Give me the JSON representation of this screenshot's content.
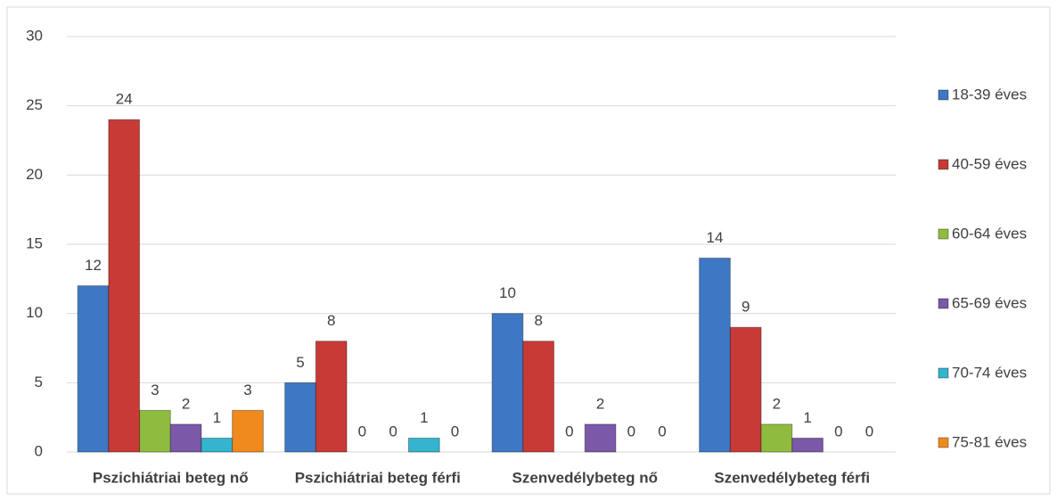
{
  "chart_data": {
    "type": "bar",
    "categories": [
      "Pszichiátriai beteg nő",
      "Pszichiátriai beteg férfi",
      "Szenvedélybeteg nő",
      "Szenvedélybeteg férfi"
    ],
    "series": [
      {
        "name": "18-39 éves",
        "color": "#3e78c4",
        "values": [
          12,
          5,
          10,
          14
        ]
      },
      {
        "name": "40-59 éves",
        "color": "#c83a36",
        "values": [
          24,
          8,
          8,
          9
        ]
      },
      {
        "name": "60-64 éves",
        "color": "#8fbc3e",
        "values": [
          3,
          0,
          0,
          2
        ]
      },
      {
        "name": "65-69 éves",
        "color": "#7b58a8",
        "values": [
          2,
          0,
          2,
          1
        ]
      },
      {
        "name": "70-74 éves",
        "color": "#34b4cf",
        "values": [
          1,
          1,
          0,
          0
        ]
      },
      {
        "name": "75-81 éves",
        "color": "#f08a1e",
        "values": [
          3,
          0,
          0,
          0
        ]
      }
    ],
    "ylim": [
      0,
      30
    ],
    "yticks": [
      0,
      5,
      10,
      15,
      20,
      25,
      30
    ],
    "grid": true,
    "legend": "right"
  }
}
